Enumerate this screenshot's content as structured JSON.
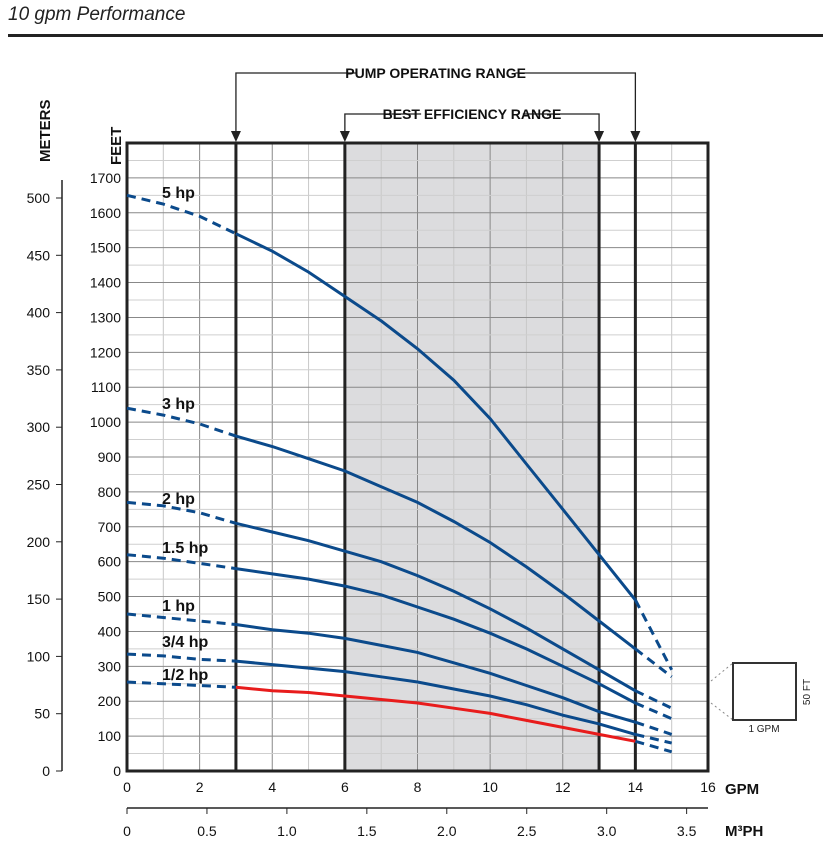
{
  "title": "10 gpm Performance",
  "chart_data": {
    "type": "line",
    "title": "10 gpm Performance",
    "xlabel": "GPM",
    "x2label": "M³PH",
    "ylabel": "FEET",
    "y2label": "METERS",
    "xlim": [
      0,
      16
    ],
    "ylim": [
      0,
      1800
    ],
    "x_ticks": [
      "0",
      "2",
      "4",
      "6",
      "8",
      "10",
      "12",
      "14",
      "16"
    ],
    "x2_ticks": [
      "0",
      "0.5",
      "1.0",
      "1.5",
      "2.0",
      "2.5",
      "3.0",
      "3.5"
    ],
    "y_ticks": [
      "0",
      "100",
      "200",
      "300",
      "400",
      "500",
      "600",
      "700",
      "800",
      "900",
      "1000",
      "1100",
      "1200",
      "1300",
      "1400",
      "1500",
      "1600",
      "1700"
    ],
    "y2_ticks": [
      "0",
      "50",
      "100",
      "150",
      "200",
      "250",
      "300",
      "350",
      "400",
      "450",
      "500"
    ],
    "pump_operating_range": {
      "label": "PUMP OPERATING RANGE",
      "from": 3,
      "to": 14
    },
    "best_efficiency_range": {
      "label": "BEST EFFICIENCY RANGE",
      "from": 6,
      "to": 13
    },
    "scale_box": {
      "x_label": "1 GPM",
      "y_label": "50 FT"
    },
    "x": [
      0,
      1,
      2,
      3,
      4,
      5,
      6,
      7,
      8,
      9,
      10,
      11,
      12,
      13,
      14,
      15
    ],
    "series": [
      {
        "name": "5 hp",
        "color": "#0b4a8b",
        "values": [
          1650,
          1625,
          1590,
          1540,
          1490,
          1430,
          1360,
          1290,
          1210,
          1120,
          1010,
          880,
          750,
          620,
          490,
          290
        ]
      },
      {
        "name": "3 hp",
        "color": "#0b4a8b",
        "values": [
          1040,
          1020,
          995,
          960,
          930,
          895,
          860,
          815,
          770,
          715,
          655,
          585,
          510,
          430,
          350,
          270
        ]
      },
      {
        "name": "2 hp",
        "color": "#0b4a8b",
        "values": [
          770,
          760,
          740,
          710,
          685,
          660,
          630,
          600,
          560,
          515,
          465,
          410,
          350,
          290,
          230,
          180
        ]
      },
      {
        "name": "1.5 hp",
        "color": "#0b4a8b",
        "values": [
          620,
          610,
          595,
          580,
          565,
          550,
          530,
          505,
          470,
          435,
          395,
          350,
          300,
          250,
          195,
          150
        ]
      },
      {
        "name": "1 hp",
        "color": "#0b4a8b",
        "values": [
          450,
          440,
          430,
          420,
          405,
          395,
          380,
          360,
          340,
          310,
          280,
          245,
          210,
          170,
          140,
          105
        ]
      },
      {
        "name": "3/4 hp",
        "color": "#0b4a8b",
        "values": [
          335,
          330,
          320,
          315,
          305,
          295,
          285,
          270,
          255,
          235,
          215,
          190,
          160,
          135,
          105,
          80
        ]
      },
      {
        "name": "1/2 hp",
        "color": "#e81c1c",
        "values": [
          255,
          250,
          245,
          240,
          230,
          225,
          215,
          205,
          195,
          180,
          165,
          145,
          125,
          105,
          85,
          55
        ]
      }
    ]
  }
}
